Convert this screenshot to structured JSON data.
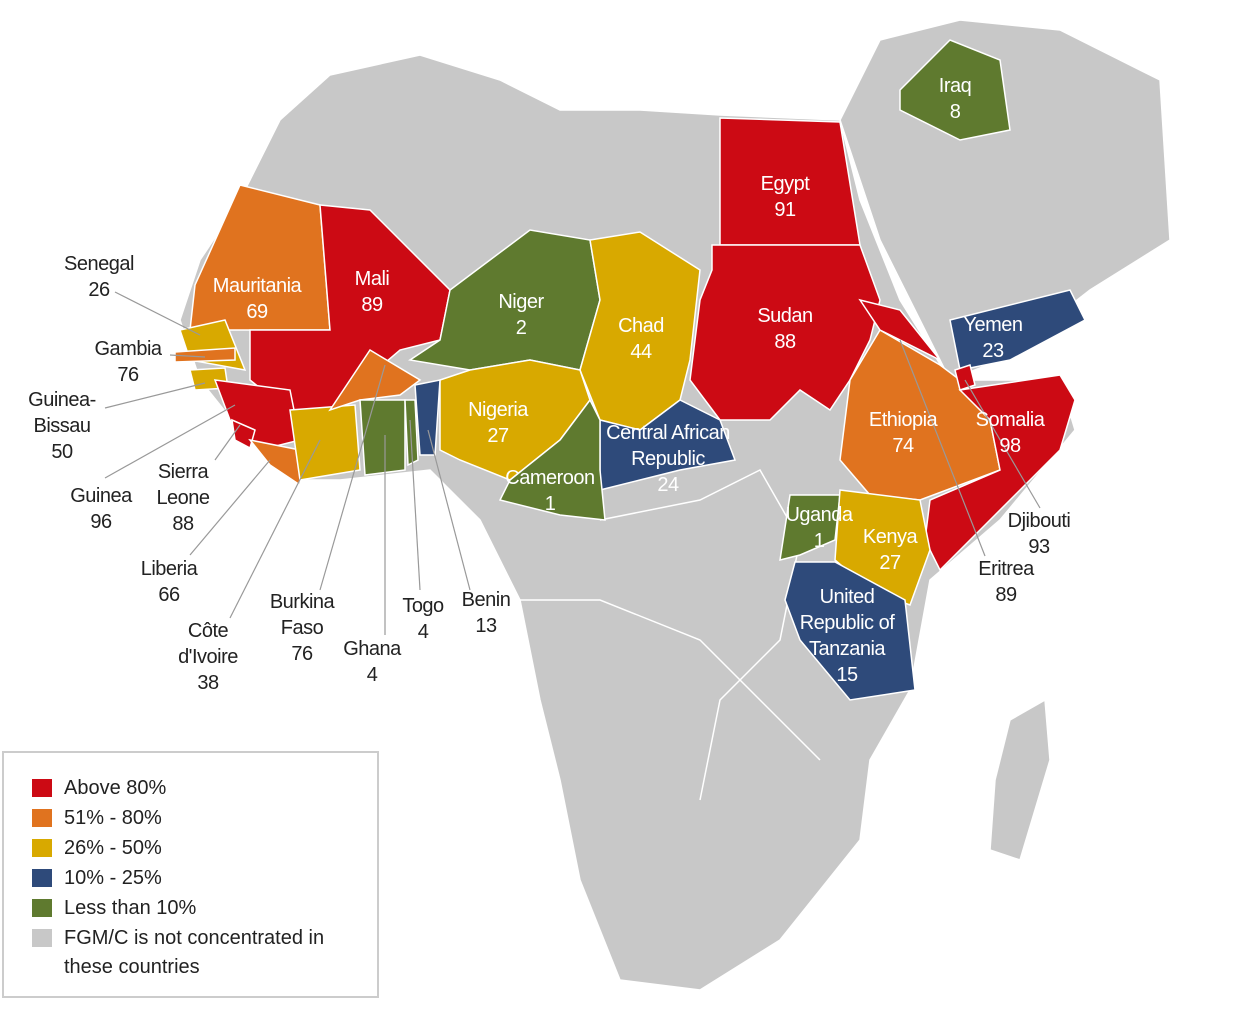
{
  "countries": [
    {
      "name": "Mauritania",
      "value": 69,
      "color": "#e0731f"
    },
    {
      "name": "Mali",
      "value": 89,
      "color": "#cc0a14"
    },
    {
      "name": "Niger",
      "value": 2,
      "color": "#5f7a2f"
    },
    {
      "name": "Chad",
      "value": 44,
      "color": "#d8a900"
    },
    {
      "name": "Egypt",
      "value": 91,
      "color": "#cc0a14"
    },
    {
      "name": "Sudan",
      "value": 88,
      "color": "#cc0a14"
    },
    {
      "name": "Iraq",
      "value": 8,
      "color": "#5f7a2f"
    },
    {
      "name": "Yemen",
      "value": 23,
      "color": "#2e4a7a"
    },
    {
      "name": "Ethiopia",
      "value": 74,
      "color": "#e0731f"
    },
    {
      "name": "Somalia",
      "value": 98,
      "color": "#cc0a14"
    },
    {
      "name": "Nigeria",
      "value": 27,
      "color": "#d8a900"
    },
    {
      "name": "Central African Republic",
      "value": 24,
      "color": "#2e4a7a"
    },
    {
      "name": "Cameroon",
      "value": 1,
      "color": "#5f7a2f"
    },
    {
      "name": "Uganda",
      "value": 1,
      "color": "#5f7a2f"
    },
    {
      "name": "Kenya",
      "value": 27,
      "color": "#d8a900"
    },
    {
      "name": "United Republic of Tanzania",
      "value": 15,
      "color": "#2e4a7a"
    },
    {
      "name": "Senegal",
      "value": 26,
      "color": "#d8a900"
    },
    {
      "name": "Gambia",
      "value": 76,
      "color": "#e0731f"
    },
    {
      "name": "Guinea-Bissau",
      "value": 50,
      "color": "#d8a900"
    },
    {
      "name": "Guinea",
      "value": 96,
      "color": "#cc0a14"
    },
    {
      "name": "Sierra Leone",
      "value": 88,
      "color": "#cc0a14"
    },
    {
      "name": "Liberia",
      "value": 66,
      "color": "#e0731f"
    },
    {
      "name": "Côte d'Ivoire",
      "value": 38,
      "color": "#d8a900"
    },
    {
      "name": "Burkina Faso",
      "value": 76,
      "color": "#e0731f"
    },
    {
      "name": "Ghana",
      "value": 4,
      "color": "#5f7a2f"
    },
    {
      "name": "Togo",
      "value": 4,
      "color": "#5f7a2f"
    },
    {
      "name": "Benin",
      "value": 13,
      "color": "#2e4a7a"
    },
    {
      "name": "Djibouti",
      "value": 93,
      "color": "#cc0a14"
    },
    {
      "name": "Eritrea",
      "value": 89,
      "color": "#cc0a14"
    }
  ],
  "legend": {
    "items": [
      {
        "label": "Above 80%",
        "color": "#cc0a14"
      },
      {
        "label": "51% - 80%",
        "color": "#e0731f"
      },
      {
        "label": "26% - 50%",
        "color": "#d8a900"
      },
      {
        "label": "10% - 25%",
        "color": "#2e4a7a"
      },
      {
        "label": "Less than 10%",
        "color": "#5f7a2f"
      },
      {
        "label": "FGM/C is not concentrated in these countries",
        "color": "#c8c8c8"
      }
    ]
  }
}
